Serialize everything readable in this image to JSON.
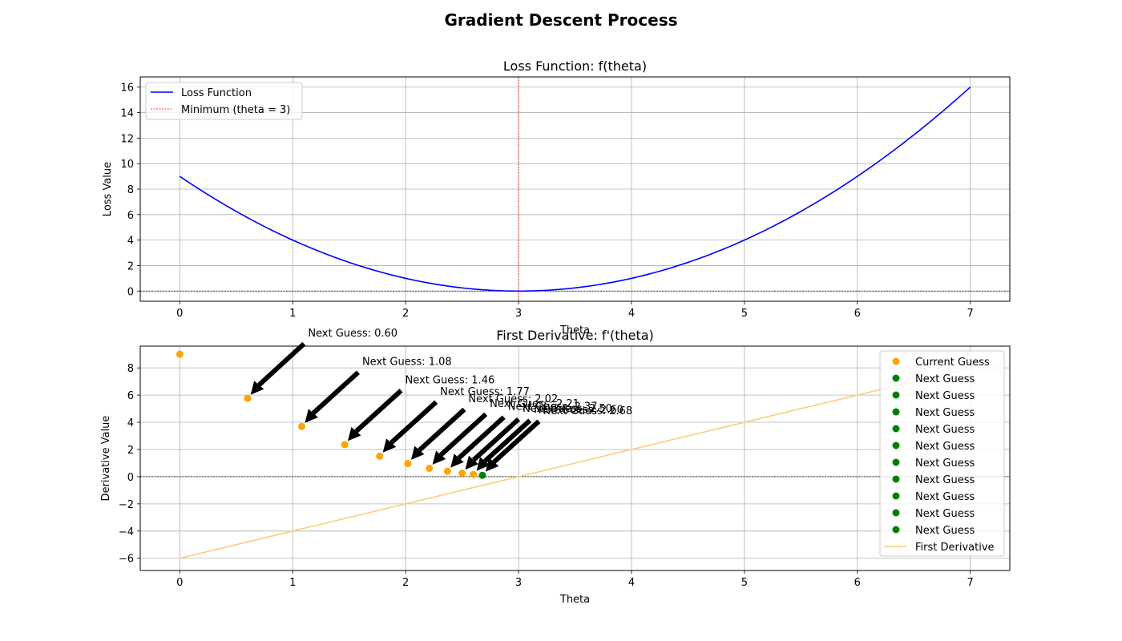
{
  "figure": {
    "suptitle": "Gradient Descent Process"
  },
  "chart_data": [
    {
      "type": "line",
      "title": "Loss Function: f(theta)",
      "xlabel": "Theta",
      "ylabel": "Loss Value",
      "xlim": [
        -0.35,
        7.35
      ],
      "ylim": [
        -0.8,
        16.8
      ],
      "xticks": [
        0,
        1,
        2,
        3,
        4,
        5,
        6,
        7
      ],
      "yticks": [
        0,
        2,
        4,
        6,
        8,
        10,
        12,
        14,
        16
      ],
      "grid": true,
      "legend_position": "upper-left",
      "function": "(theta - 3)^2",
      "x_range": [
        0,
        7
      ],
      "series": [
        {
          "name": "Loss Function",
          "color": "#0000ff",
          "style": "solid"
        }
      ],
      "vline": {
        "name": "Minimum (theta = 3)",
        "x": 3,
        "color": "#ff0000",
        "style": "dashed"
      },
      "hline": {
        "y": 0,
        "color": "#000000",
        "style": "dashed"
      }
    },
    {
      "type": "scatter",
      "title": "First Derivative: f'(theta)",
      "xlabel": "Theta",
      "ylabel": "Derivative Value",
      "xlim": [
        -0.35,
        7.35
      ],
      "ylim": [
        -6.9,
        9.6
      ],
      "xticks": [
        0,
        1,
        2,
        3,
        4,
        5,
        6,
        7
      ],
      "yticks": [
        -6,
        -4,
        -2,
        0,
        2,
        4,
        6,
        8
      ],
      "grid": true,
      "legend_position": "upper-right",
      "derivative_line": {
        "name": "First Derivative",
        "function": "2*(theta - 3)",
        "x_range": [
          0,
          7
        ],
        "color": "#ffcc77"
      },
      "current_guess": {
        "name": "Current Guess",
        "color": "#ffa500",
        "points": [
          {
            "x": 0,
            "y": 9
          },
          {
            "x": 0.6,
            "y": 5.76
          },
          {
            "x": 1.08,
            "y": 3.69
          },
          {
            "x": 1.46,
            "y": 2.36
          },
          {
            "x": 1.77,
            "y": 1.51
          },
          {
            "x": 2.02,
            "y": 0.97
          },
          {
            "x": 2.21,
            "y": 0.62
          },
          {
            "x": 2.37,
            "y": 0.4
          },
          {
            "x": 2.5,
            "y": 0.25
          },
          {
            "x": 2.6,
            "y": 0.16
          }
        ]
      },
      "next_guess": {
        "name": "Next Guess",
        "color": "#008000",
        "legend_count": 10,
        "points": [
          {
            "x": 2.68,
            "y": 0.1
          }
        ]
      },
      "annotations": [
        {
          "text": "Next Guess: 0.60",
          "x": 0.6,
          "y": 5.76,
          "text_x": 1.1,
          "text_y": 10.6
        },
        {
          "text": "Next Guess: 1.08",
          "x": 1.08,
          "y": 3.69,
          "text_x": 1.58,
          "text_y": 8.5
        },
        {
          "text": "Next Guess: 1.46",
          "x": 1.46,
          "y": 2.36,
          "text_x": 1.96,
          "text_y": 7.16
        },
        {
          "text": "Next Guess: 1.77",
          "x": 1.77,
          "y": 1.51,
          "text_x": 2.27,
          "text_y": 6.31
        },
        {
          "text": "Next Guess: 2.02",
          "x": 2.02,
          "y": 0.97,
          "text_x": 2.52,
          "text_y": 5.77
        },
        {
          "text": "Next Guess: 2.21",
          "x": 2.21,
          "y": 0.62,
          "text_x": 2.71,
          "text_y": 5.42
        },
        {
          "text": "Next Guess: 2.37",
          "x": 2.37,
          "y": 0.4,
          "text_x": 2.87,
          "text_y": 5.2
        },
        {
          "text": "Next Guess: 2.50",
          "x": 2.5,
          "y": 0.25,
          "text_x": 3.0,
          "text_y": 5.05
        },
        {
          "text": "Next Guess: 2.60",
          "x": 2.6,
          "y": 0.16,
          "text_x": 3.1,
          "text_y": 4.96
        },
        {
          "text": "Next Guess: 2.68",
          "x": 2.68,
          "y": 0.1,
          "text_x": 3.18,
          "text_y": 4.9
        }
      ]
    }
  ]
}
